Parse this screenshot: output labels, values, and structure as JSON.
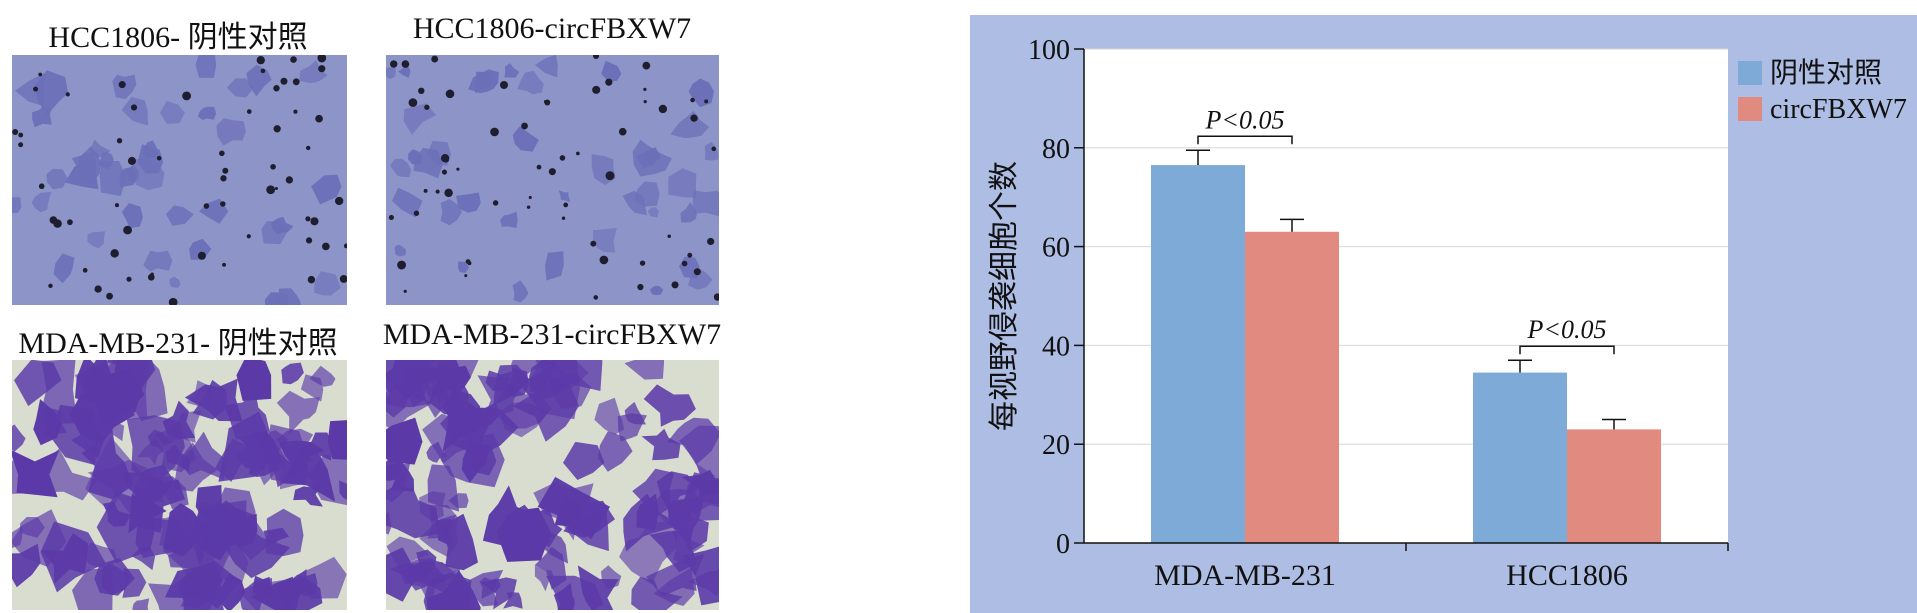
{
  "figure": {
    "panels": [
      {
        "label": "HCC1806- 阴性对照",
        "stain": "#6b6fb8",
        "bg": "#8d94c8"
      },
      {
        "label": "HCC1806-circFBXW7",
        "stain": "#6b6fb8",
        "bg": "#8d94c8"
      },
      {
        "label": "MDA-MB-231- 阴性对照",
        "stain": "#5b3aa8",
        "bg": "#d8ddd0"
      },
      {
        "label": "MDA-MB-231-circFBXW7",
        "stain": "#5b3aa8",
        "bg": "#d8ddd0"
      }
    ]
  },
  "chart_data": {
    "type": "bar",
    "categories": [
      "MDA-MB-231",
      "HCC1806"
    ],
    "series": [
      {
        "name": "阴性对照",
        "color": "#7eaad8",
        "values": [
          76.5,
          34.5
        ],
        "errors": [
          3,
          2.5
        ]
      },
      {
        "name": "circFBXW7",
        "color": "#e08a80",
        "values": [
          63,
          23
        ],
        "errors": [
          2.5,
          2
        ]
      }
    ],
    "ylabel": "每视野侵袭细胞个数",
    "xlabel": "",
    "ylim": [
      0,
      100
    ],
    "yticks": [
      0,
      20,
      40,
      60,
      80,
      100
    ],
    "grid": true,
    "legend": "top-right",
    "annotations": [
      {
        "category": "MDA-MB-231",
        "text": "P<0.05"
      },
      {
        "category": "HCC1806",
        "text": "P<0.05"
      }
    ],
    "panel_bg": "#aebde3"
  }
}
